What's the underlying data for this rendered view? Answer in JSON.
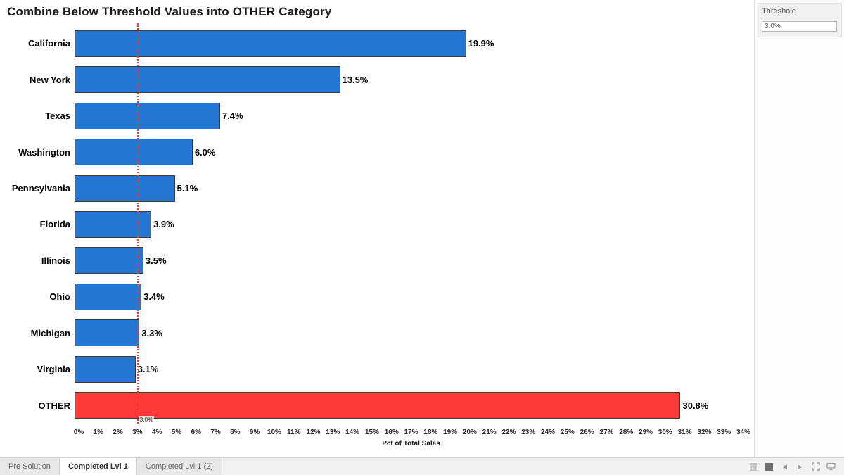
{
  "title": "Combine Below Threshold Values into OTHER Category",
  "chart_data": {
    "type": "bar",
    "orientation": "horizontal",
    "title": "Combine Below Threshold Values into OTHER Category",
    "categories": [
      "California",
      "New York",
      "Texas",
      "Washington",
      "Pennsylvania",
      "Florida",
      "Illinois",
      "Ohio",
      "Michigan",
      "Virginia",
      "OTHER"
    ],
    "values": [
      19.9,
      13.5,
      7.4,
      6.0,
      5.1,
      3.9,
      3.5,
      3.4,
      3.3,
      3.1,
      30.8
    ],
    "value_labels": [
      "19.9%",
      "13.5%",
      "7.4%",
      "6.0%",
      "5.1%",
      "3.9%",
      "3.5%",
      "3.4%",
      "3.3%",
      "3.1%",
      "30.8%"
    ],
    "bar_colors": [
      "#2575d2",
      "#2575d2",
      "#2575d2",
      "#2575d2",
      "#2575d2",
      "#2575d2",
      "#2575d2",
      "#2575d2",
      "#2575d2",
      "#2575d2",
      "#fc3b39"
    ],
    "xlabel": "Pct of Total Sales",
    "xlim": [
      0,
      34
    ],
    "tick_step": 1,
    "tick_suffix": "%",
    "grid": false,
    "legend": null,
    "reference_line": {
      "value": 3.0,
      "label": "3.0%",
      "color": "#f4352c",
      "style": "dotted"
    }
  },
  "parameter_panel": {
    "label": "Threshold",
    "value": "3.0%"
  },
  "status_bar": {
    "tabs": [
      {
        "label": "Pre Solution",
        "active": false
      },
      {
        "label": "Completed Lvl 1",
        "active": true
      },
      {
        "label": "Completed Lvl 1 (2)",
        "active": false
      }
    ],
    "icons": [
      "sheet-sorter",
      "filmstrip",
      "previous-sheet",
      "next-sheet",
      "fullscreen",
      "presentation-mode"
    ]
  }
}
